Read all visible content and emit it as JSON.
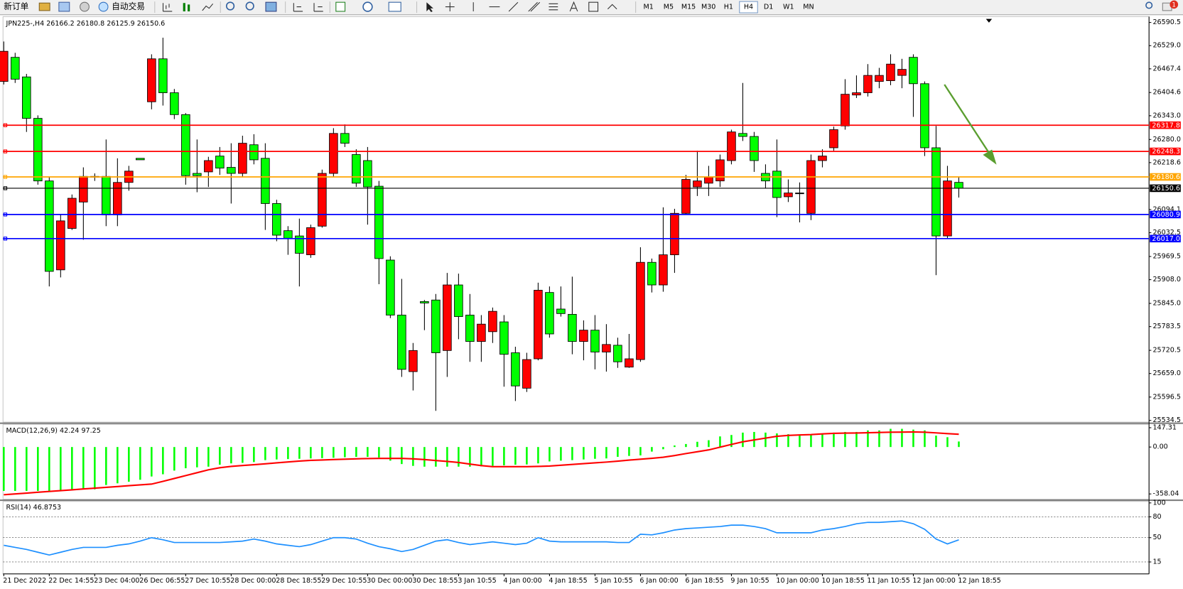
{
  "toolbar": {
    "new_order": "新订单",
    "auto_trading": "自动交易",
    "timeframes": [
      "M1",
      "M5",
      "M15",
      "M30",
      "H1",
      "H4",
      "D1",
      "W1",
      "MN"
    ],
    "active_timeframe": "H4",
    "notifications": "1"
  },
  "chart_data": [
    {
      "type": "candlestick",
      "title": "JPN225-,H4",
      "categories": [
        "21 Dec 2022",
        null,
        null,
        null,
        "22 Dec 14:55",
        null,
        null,
        null,
        "23 Dec 04:00",
        null,
        null,
        null,
        "26 Dec 06:55",
        null,
        null,
        null,
        "27 Dec 10:55",
        null,
        null,
        null,
        "28 Dec 00:00",
        null,
        null,
        null,
        "28 Dec 18:55",
        null,
        null,
        null,
        "29 Dec 10:55",
        null,
        null,
        null,
        "30 Dec 00:00",
        null,
        null,
        null,
        "30 Dec 18:55",
        null,
        null,
        null,
        "3 Jan 10:55",
        null,
        null,
        null,
        "4 Jan 00:00",
        null,
        null,
        null,
        "4 Jan 18:55",
        null,
        null,
        null,
        "5 Jan 10:55",
        null,
        null,
        null,
        "6 Jan 00:00",
        null,
        null,
        null,
        "6 Jan 18:55",
        null,
        null,
        null,
        "9 Jan 10:55",
        null,
        null,
        null,
        "10 Jan 00:00",
        null,
        null,
        null,
        "10 Jan 18:55",
        null,
        null,
        null,
        "11 Jan 10:55",
        null,
        null,
        null,
        "12 Jan 00:00",
        null,
        null,
        null,
        "12 Jan 18:55"
      ],
      "open": [
        26434,
        26498,
        26446,
        26336,
        26170,
        25934,
        26044,
        26114,
        26180,
        26182,
        26080,
        26166,
        26230,
        26380,
        26494,
        26404,
        26346,
        26190,
        26194,
        26236,
        26206,
        26190,
        26266,
        26230,
        26110,
        26038,
        26024,
        25974,
        26050,
        26190,
        26296,
        26240,
        26224,
        26156,
        25960,
        25814,
        25664,
        25850,
        25854,
        25720,
        25894,
        25814,
        25744,
        25770,
        25796,
        25714,
        25620,
        25698,
        25874,
        25830,
        25816,
        25744,
        25774,
        25716,
        25734,
        25676,
        25696,
        25954,
        25894,
        25974,
        26084,
        26154,
        26164,
        26170,
        26224,
        26296,
        26288,
        26190,
        26196,
        26128,
        26138,
        26084,
        26224,
        26258,
        26316,
        26398,
        26404,
        26434,
        26436,
        26450,
        26498,
        26428,
        26258,
        26024,
        26166.2
      ],
      "high": [
        26540,
        26510,
        26454,
        26344,
        26180,
        26080,
        26134,
        26206,
        26190,
        26280,
        26230,
        26210,
        26230,
        26506,
        26550,
        26414,
        26350,
        26280,
        26234,
        26260,
        26270,
        26290,
        26294,
        26270,
        26120,
        26050,
        26070,
        26054,
        26200,
        26310,
        26320,
        26254,
        26260,
        26170,
        25970,
        25910,
        25740,
        25854,
        25870,
        25926,
        25924,
        25870,
        25814,
        25834,
        25814,
        25730,
        25714,
        25900,
        25890,
        25890,
        25916,
        25800,
        25814,
        25790,
        25754,
        25764,
        25994,
        25964,
        26100,
        26096,
        26186,
        26250,
        26210,
        26240,
        26306,
        26430,
        26300,
        26214,
        26280,
        26174,
        26166,
        26240,
        26254,
        26314,
        26440,
        26450,
        26480,
        26470,
        26506,
        26494,
        26506,
        26434,
        26316,
        26210,
        26180.8
      ],
      "low": [
        26426,
        26430,
        26300,
        26160,
        25890,
        25914,
        26040,
        26014,
        26170,
        26050,
        26050,
        26144,
        26226,
        26360,
        26370,
        26334,
        26160,
        26140,
        26154,
        26186,
        26110,
        26180,
        26214,
        26040,
        26010,
        25974,
        25890,
        25966,
        26046,
        26180,
        26260,
        26154,
        26054,
        25896,
        25806,
        25650,
        25614,
        25774,
        25560,
        25650,
        25750,
        25690,
        25690,
        25740,
        25624,
        25586,
        25610,
        25694,
        25754,
        25810,
        25710,
        25694,
        25670,
        25664,
        25674,
        25674,
        25690,
        25874,
        25876,
        25926,
        26080,
        26130,
        26130,
        26154,
        26214,
        26276,
        26194,
        26150,
        26074,
        26114,
        26060,
        26066,
        26206,
        26250,
        26306,
        26390,
        26394,
        26416,
        26424,
        26416,
        26340,
        26236,
        25920,
        26018,
        26125.9
      ],
      "close": [
        26514,
        26440,
        26336,
        26170,
        25930,
        26064,
        26124,
        26182,
        26182,
        26080,
        26166,
        26196,
        26226,
        26494,
        26404,
        26346,
        26184,
        26184,
        26224,
        26204,
        26190,
        26270,
        26226,
        26110,
        26026,
        26018,
        25978,
        26046,
        26190,
        26296,
        26270,
        26164,
        26154,
        25964,
        25814,
        25670,
        25720,
        25846,
        25714,
        25894,
        25810,
        25744,
        25790,
        25824,
        25710,
        25626,
        25696,
        25880,
        25764,
        25818,
        25744,
        25774,
        25716,
        25736,
        25690,
        25698,
        25954,
        25894,
        25974,
        26084,
        26174,
        26170,
        26180,
        26226,
        26300,
        26288,
        26224,
        26170,
        26126,
        26138,
        26138,
        26224,
        26236,
        26306,
        26400,
        26404,
        26450,
        26450,
        26480,
        26466,
        26428,
        26258,
        26024,
        26170,
        26150.6
      ],
      "up_color": "#ff0000",
      "down_color": "#00ff00",
      "doji_color": "#000000",
      "last_price_color": "#000000",
      "ylim": [
        25532,
        26606
      ],
      "yticks": [
        26590.5,
        {
          "value": 26529,
          "label": "26529.0"
        },
        26467.4,
        26404.6,
        {
          "value": 26343,
          "label": "26343.0"
        },
        {
          "value": 26280,
          "label": "26280.0"
        },
        26218.6,
        26094.1,
        26032.5,
        25969.5,
        {
          "value": 25908,
          "label": "25908.0"
        },
        {
          "value": 25845,
          "label": "25845.0"
        },
        25783.5,
        25720.5,
        {
          "value": 25659,
          "label": "25659.0"
        },
        25596.5,
        25534.5
      ],
      "levels": [
        {
          "value": 26317.8,
          "color": "#ff0000"
        },
        {
          "value": 26248.3,
          "color": "#ff0000"
        },
        {
          "value": 26180.6,
          "color": "#ffa500"
        },
        {
          "value": 26080.9,
          "color": "#0000ff"
        },
        {
          "value": 26017,
          "label": "26017.0",
          "color": "#0000ff"
        }
      ]
    },
    {
      "type": "macd",
      "title": "MACD(12,26,9)",
      "histogram": {
        "color": "#00ff00",
        "values": [
          -335,
          -335,
          -335,
          -335,
          -335,
          -330,
          -323,
          -323,
          -323,
          -290,
          -277,
          -265,
          -250,
          -225,
          -208,
          -180,
          -162,
          -155,
          -150,
          -135,
          -125,
          -121,
          -115,
          -100,
          -95,
          -92,
          -90,
          -87,
          -85,
          -82,
          -78,
          -75,
          -75,
          -80,
          -104,
          -130,
          -144,
          -150,
          -150,
          -150,
          -150,
          -150,
          -148,
          -144,
          -140,
          -135,
          -133,
          -125,
          -110,
          -104,
          -100,
          -95,
          -90,
          -87,
          -75,
          -68,
          -64,
          -35,
          -17,
          12,
          23,
          40,
          52,
          81,
          92,
          110,
          115,
          110,
          104,
          98,
          87,
          92,
          104,
          110,
          115,
          115,
          127,
          127,
          139,
          139,
          133,
          127,
          87,
          75,
          42.24
        ]
      },
      "signal": {
        "color": "#ff0000",
        "values": [
          -364,
          -358,
          -352,
          -345,
          -339,
          -333,
          -327,
          -320,
          -314,
          -308,
          -302,
          -295,
          -289,
          -283,
          -262,
          -240,
          -218,
          -196,
          -174,
          -158,
          -148,
          -141,
          -135,
          -128,
          -121,
          -114,
          -107,
          -102,
          -99,
          -96,
          -93,
          -90,
          -88,
          -87,
          -87,
          -87,
          -90,
          -96,
          -103,
          -110,
          -118,
          -130,
          -142,
          -150,
          -150,
          -150,
          -150,
          -148,
          -145,
          -139,
          -133,
          -127,
          -121,
          -115,
          -108,
          -100,
          -93,
          -86,
          -78,
          -65,
          -50,
          -36,
          -22,
          -1,
          20,
          40,
          54,
          68,
          82,
          89,
          92,
          95,
          100,
          104,
          106,
          107,
          109,
          111,
          113,
          114,
          115,
          113,
          108,
          102,
          97.25
        ]
      },
      "ylim": [
        -392,
        167
      ],
      "yticks": [
        147.31,
        {
          "value": 0,
          "label": "0.00"
        },
        -358.04
      ]
    },
    {
      "type": "line",
      "title": "RSI(14)",
      "color": "#1e90ff",
      "values": [
        39,
        36,
        33,
        29,
        25,
        29,
        33,
        36,
        36,
        36,
        39,
        41,
        45,
        50,
        47,
        43,
        43,
        43,
        43,
        43,
        44,
        45,
        48,
        45,
        41,
        39,
        37,
        40,
        45,
        50,
        50,
        48,
        42,
        37,
        34,
        30,
        33,
        39,
        45,
        47,
        43,
        40,
        42,
        44,
        42,
        40,
        42,
        50,
        45,
        44,
        44,
        44,
        44,
        44,
        43,
        43,
        55,
        54,
        57,
        61,
        63,
        64,
        65,
        66,
        68,
        68,
        66,
        63,
        57,
        57,
        57,
        57,
        61,
        63,
        66,
        70,
        72,
        72,
        73,
        74,
        70,
        62,
        48,
        41,
        46.8753
      ],
      "ylim": [
        0,
        100
      ],
      "yticks": [
        100,
        80,
        50,
        15
      ],
      "grid": true
    }
  ]
}
